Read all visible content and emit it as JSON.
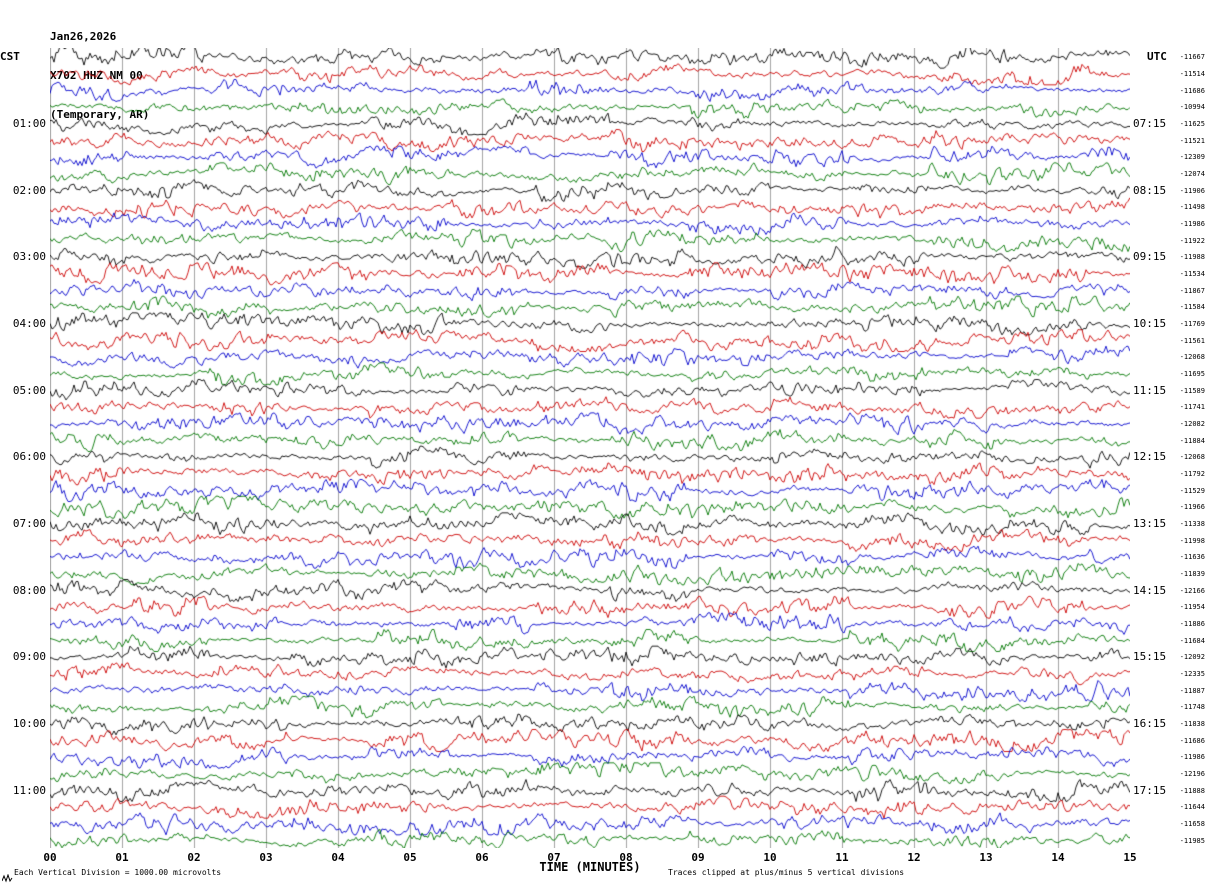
{
  "title": {
    "line1": "Jan26,2026",
    "line2": "X702 HHZ NM 00",
    "line3": "(Temporary, AR)"
  },
  "axes": {
    "left_header": "CST",
    "right_header": "UTC",
    "left_hour_labels": [
      "01:00",
      "02:00",
      "03:00",
      "04:00",
      "05:00",
      "06:00",
      "07:00",
      "08:00",
      "09:00",
      "10:00",
      "11:00"
    ],
    "right_hour_labels": [
      "07:15",
      "08:15",
      "09:15",
      "10:15",
      "11:15",
      "12:15",
      "13:15",
      "14:15",
      "15:15",
      "16:15",
      "17:15"
    ],
    "x_tick_labels": [
      "00",
      "01",
      "02",
      "03",
      "04",
      "05",
      "06",
      "07",
      "08",
      "09",
      "10",
      "11",
      "12",
      "13",
      "14",
      "15"
    ],
    "x_axis_title": "TIME (MINUTES)"
  },
  "footer": {
    "scale_note": "Each Vertical Division = 1000.00 microvolts",
    "clip_note": "Traces clipped at plus/minus 5 vertical divisions"
  },
  "chart_data": {
    "type": "line",
    "subtype": "helicorder-seismogram",
    "station": "X702 HHZ NM 00",
    "date": "Jan26,2026",
    "network_note": "(Temporary, AR)",
    "rows": 48,
    "traces_per_hour": 4,
    "minutes_per_trace": 15,
    "x_range_minutes": [
      0,
      15
    ],
    "x_tick_interval_minutes": 1,
    "grid": "vertical-minute-lines",
    "trace_colors": [
      "#000000",
      "#cc0000",
      "#0000cc",
      "#007700"
    ],
    "left_time_zone": "CST",
    "right_time_zone": "UTC",
    "first_left_hour_label": "01:00",
    "last_left_hour_label": "11:00",
    "first_right_hour_label": "07:15",
    "last_right_hour_label": "17:15",
    "vertical_division_microvolts": 1000.0,
    "clip_divisions": 5,
    "row_values": [
      -11667,
      -11514,
      -11686,
      -10994,
      -11625,
      -11521,
      -12309,
      -12074,
      -11906,
      -11498,
      -11986,
      -11922,
      -11988,
      -11534,
      -11867,
      -11584,
      -11769,
      -11561,
      -12068,
      -11695,
      -11589,
      -11741,
      -12082,
      -11884,
      -12068,
      -11792,
      -11529,
      -11966,
      -11338,
      -11998,
      -11636,
      -11839,
      -12166,
      -11954,
      -11886,
      -11684,
      -12092,
      -12335,
      -11887,
      -11748,
      -11838,
      -11686,
      -11986,
      -12196,
      -11888,
      -11644,
      -11658,
      -11985
    ]
  }
}
